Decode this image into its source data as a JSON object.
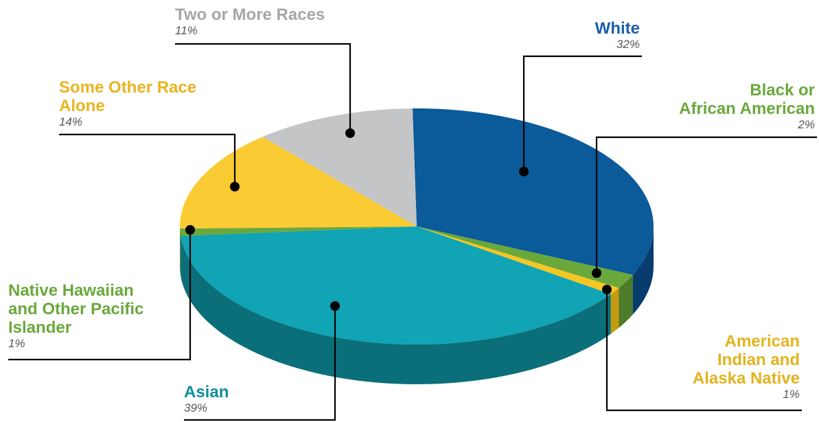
{
  "chart_data": {
    "type": "pie",
    "style": "3d",
    "slices": [
      {
        "label": "White",
        "value": 32,
        "value_text": "32%",
        "color": "#0b5a9a",
        "side_color": "#083c6d"
      },
      {
        "label": "Black or\nAfrican American",
        "value": 2,
        "value_text": "2%",
        "color": "#6aa83c",
        "side_color": "#4c7b2a"
      },
      {
        "label": "American\nIndian and\nAlaska Native",
        "value": 1,
        "value_text": "1%",
        "color": "#f6c623",
        "side_color": "#c69b10"
      },
      {
        "label": "Asian",
        "value": 39,
        "value_text": "39%",
        "color": "#10a4b4",
        "side_color": "#0b6f7a"
      },
      {
        "label": "Native Hawaiian\nand Other Pacific\nIslander",
        "value": 1,
        "value_text": "1%",
        "color": "#6aa83c",
        "side_color": "#4c7b2a"
      },
      {
        "label": "Some Other Race\nAlone",
        "value": 14,
        "value_text": "14%",
        "color": "#fbcb33",
        "side_color": "#c69b10"
      },
      {
        "label": "Two or More Races",
        "value": 11,
        "value_text": "11%",
        "color": "#c3c5c7",
        "side_color": "#8f9193"
      }
    ],
    "label_colors": {
      "White": "#1a5ea8",
      "Black or African American": "#6aa83c",
      "American Indian and Alaska Native": "#e3b31c",
      "Asian": "#0e8e9c",
      "Native Hawaiian and Other Pacific Islander": "#6aa83c",
      "Some Other Race Alone": "#e9b420",
      "Two or More Races": "#a4a6a8"
    }
  }
}
